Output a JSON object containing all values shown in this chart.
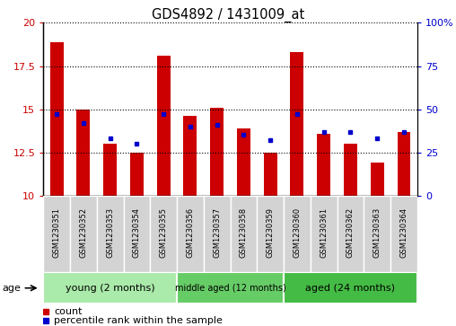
{
  "title": "GDS4892 / 1431009_at",
  "samples": [
    "GSM1230351",
    "GSM1230352",
    "GSM1230353",
    "GSM1230354",
    "GSM1230355",
    "GSM1230356",
    "GSM1230357",
    "GSM1230358",
    "GSM1230359",
    "GSM1230360",
    "GSM1230361",
    "GSM1230362",
    "GSM1230363",
    "GSM1230364"
  ],
  "counts": [
    18.9,
    15.0,
    13.0,
    12.5,
    18.1,
    14.6,
    15.1,
    13.9,
    12.5,
    18.3,
    13.6,
    13.0,
    11.9,
    13.7
  ],
  "percentiles": [
    47,
    42,
    33,
    30,
    47,
    40,
    41,
    35,
    32,
    47,
    37,
    37,
    33,
    37
  ],
  "ylim_left": [
    10,
    20
  ],
  "ylim_right": [
    0,
    100
  ],
  "yticks_left": [
    10,
    12.5,
    15,
    17.5,
    20
  ],
  "yticks_right": [
    0,
    25,
    50,
    75,
    100
  ],
  "groups": [
    {
      "label": "young (2 months)",
      "start": 0,
      "end": 5
    },
    {
      "label": "middle aged (12 months)",
      "start": 5,
      "end": 9
    },
    {
      "label": "aged (24 months)",
      "start": 9,
      "end": 14
    }
  ],
  "group_colors": [
    "#AAEAAA",
    "#66CC66",
    "#44BB44"
  ],
  "bar_color": "#CC0000",
  "marker_color": "#0000CC",
  "bar_width": 0.5,
  "tick_color_left": "#CC0000",
  "tick_color_right": "#0000CC",
  "age_label": "age",
  "legend_count_label": "count",
  "legend_pct_label": "percentile rank within the sample",
  "sample_cell_color": "#D3D3D3",
  "sample_cell_edge": "#FFFFFF"
}
